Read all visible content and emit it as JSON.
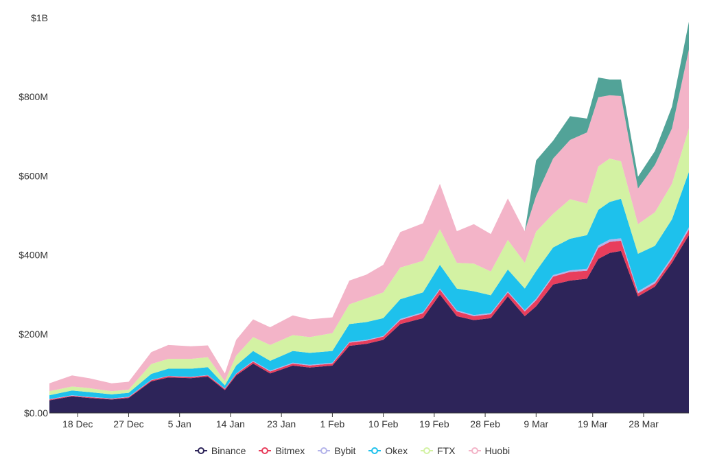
{
  "chart_data": {
    "type": "area",
    "stacked": true,
    "title": "",
    "xlabel": "",
    "ylabel": "",
    "ylim": [
      0,
      1000000000
    ],
    "y_ticks": [
      {
        "value": 0,
        "label": "$0.00"
      },
      {
        "value": 200000000,
        "label": "$200M"
      },
      {
        "value": 400000000,
        "label": "$400M"
      },
      {
        "value": 600000000,
        "label": "$600M"
      },
      {
        "value": 800000000,
        "label": "$800M"
      },
      {
        "value": 1000000000,
        "label": "$1B"
      }
    ],
    "x_start": "2020-12-13",
    "x_end": "2021-04-05",
    "x_ticks": [
      {
        "date": "2020-12-18",
        "label": "18 Dec"
      },
      {
        "date": "2020-12-27",
        "label": "27 Dec"
      },
      {
        "date": "2021-01-05",
        "label": "5 Jan"
      },
      {
        "date": "2021-01-14",
        "label": "14 Jan"
      },
      {
        "date": "2021-01-23",
        "label": "23 Jan"
      },
      {
        "date": "2021-02-01",
        "label": "1 Feb"
      },
      {
        "date": "2021-02-10",
        "label": "10 Feb"
      },
      {
        "date": "2021-02-19",
        "label": "19 Feb"
      },
      {
        "date": "2021-02-28",
        "label": "28 Feb"
      },
      {
        "date": "2021-03-09",
        "label": "9 Mar"
      },
      {
        "date": "2021-03-19",
        "label": "19 Mar"
      },
      {
        "date": "2021-03-28",
        "label": "28 Mar"
      }
    ],
    "grid": false,
    "legend": "bottom",
    "x": [
      "2020-12-13",
      "2020-12-17",
      "2020-12-20",
      "2020-12-24",
      "2020-12-27",
      "2020-12-31",
      "2021-01-03",
      "2021-01-07",
      "2021-01-10",
      "2021-01-13",
      "2021-01-15",
      "2021-01-18",
      "2021-01-21",
      "2021-01-25",
      "2021-01-28",
      "2021-02-01",
      "2021-02-04",
      "2021-02-07",
      "2021-02-10",
      "2021-02-13",
      "2021-02-17",
      "2021-02-20",
      "2021-02-23",
      "2021-02-26",
      "2021-03-01",
      "2021-03-04",
      "2021-03-07",
      "2021-03-09",
      "2021-03-12",
      "2021-03-15",
      "2021-03-18",
      "2021-03-20",
      "2021-03-22",
      "2021-03-24",
      "2021-03-27",
      "2021-03-30",
      "2021-04-02",
      "2021-04-05"
    ],
    "series": [
      {
        "name": "Binance",
        "color": "#2d2459",
        "values": [
          32000000,
          42000000,
          38000000,
          34000000,
          38000000,
          80000000,
          90000000,
          88000000,
          92000000,
          58000000,
          95000000,
          125000000,
          100000000,
          120000000,
          115000000,
          120000000,
          170000000,
          175000000,
          185000000,
          225000000,
          240000000,
          300000000,
          245000000,
          235000000,
          240000000,
          295000000,
          245000000,
          270000000,
          325000000,
          335000000,
          340000000,
          390000000,
          405000000,
          410000000,
          295000000,
          320000000,
          380000000,
          450000000
        ]
      },
      {
        "name": "Bitmex",
        "color": "#e83e5c",
        "values": [
          2000000,
          2000000,
          2000000,
          2000000,
          2000000,
          3000000,
          3000000,
          3000000,
          3000000,
          3000000,
          4000000,
          5000000,
          5000000,
          5000000,
          5000000,
          5000000,
          8000000,
          8000000,
          8000000,
          10000000,
          12000000,
          12000000,
          12000000,
          10000000,
          10000000,
          10000000,
          12000000,
          15000000,
          20000000,
          22000000,
          20000000,
          28000000,
          28000000,
          26000000,
          8000000,
          8000000,
          10000000,
          14000000
        ]
      },
      {
        "name": "Bybit",
        "color": "#b4b4ea",
        "values": [
          1000000,
          1000000,
          1000000,
          1000000,
          1000000,
          1000000,
          1000000,
          1000000,
          1000000,
          1000000,
          1000000,
          2000000,
          2000000,
          2000000,
          2000000,
          2000000,
          2000000,
          2000000,
          2000000,
          3000000,
          3000000,
          3000000,
          3000000,
          3000000,
          3000000,
          3000000,
          3000000,
          4000000,
          4000000,
          4000000,
          5000000,
          6000000,
          6000000,
          6000000,
          5000000,
          5000000,
          5000000,
          6000000
        ]
      },
      {
        "name": "Okex",
        "color": "#1ec1ec",
        "values": [
          10000000,
          12000000,
          12000000,
          10000000,
          10000000,
          15000000,
          18000000,
          20000000,
          20000000,
          8000000,
          20000000,
          25000000,
          25000000,
          30000000,
          30000000,
          30000000,
          45000000,
          45000000,
          45000000,
          50000000,
          50000000,
          60000000,
          55000000,
          60000000,
          45000000,
          55000000,
          55000000,
          70000000,
          70000000,
          80000000,
          85000000,
          90000000,
          95000000,
          100000000,
          95000000,
          90000000,
          95000000,
          140000000
        ]
      },
      {
        "name": "FTX",
        "color": "#d3f2a3",
        "values": [
          10000000,
          10000000,
          10000000,
          8000000,
          8000000,
          25000000,
          25000000,
          25000000,
          25000000,
          10000000,
          25000000,
          35000000,
          40000000,
          40000000,
          40000000,
          45000000,
          50000000,
          60000000,
          65000000,
          80000000,
          80000000,
          90000000,
          65000000,
          70000000,
          60000000,
          75000000,
          65000000,
          100000000,
          85000000,
          100000000,
          80000000,
          110000000,
          110000000,
          95000000,
          75000000,
          85000000,
          90000000,
          110000000
        ]
      },
      {
        "name": "Huobi",
        "color": "#f3b4c8",
        "values": [
          20000000,
          28000000,
          25000000,
          20000000,
          20000000,
          30000000,
          35000000,
          32000000,
          30000000,
          20000000,
          40000000,
          45000000,
          45000000,
          50000000,
          45000000,
          40000000,
          60000000,
          60000000,
          70000000,
          90000000,
          95000000,
          115000000,
          80000000,
          100000000,
          95000000,
          105000000,
          80000000,
          90000000,
          140000000,
          150000000,
          180000000,
          175000000,
          160000000,
          165000000,
          90000000,
          120000000,
          140000000,
          200000000
        ]
      },
      {
        "name": "",
        "color": "#52a398",
        "values": [
          0,
          0,
          0,
          0,
          0,
          0,
          0,
          0,
          0,
          0,
          0,
          0,
          0,
          0,
          0,
          0,
          0,
          0,
          0,
          0,
          0,
          0,
          0,
          0,
          0,
          0,
          0,
          90000000,
          45000000,
          60000000,
          35000000,
          50000000,
          40000000,
          42000000,
          30000000,
          35000000,
          55000000,
          70000000
        ]
      }
    ]
  }
}
